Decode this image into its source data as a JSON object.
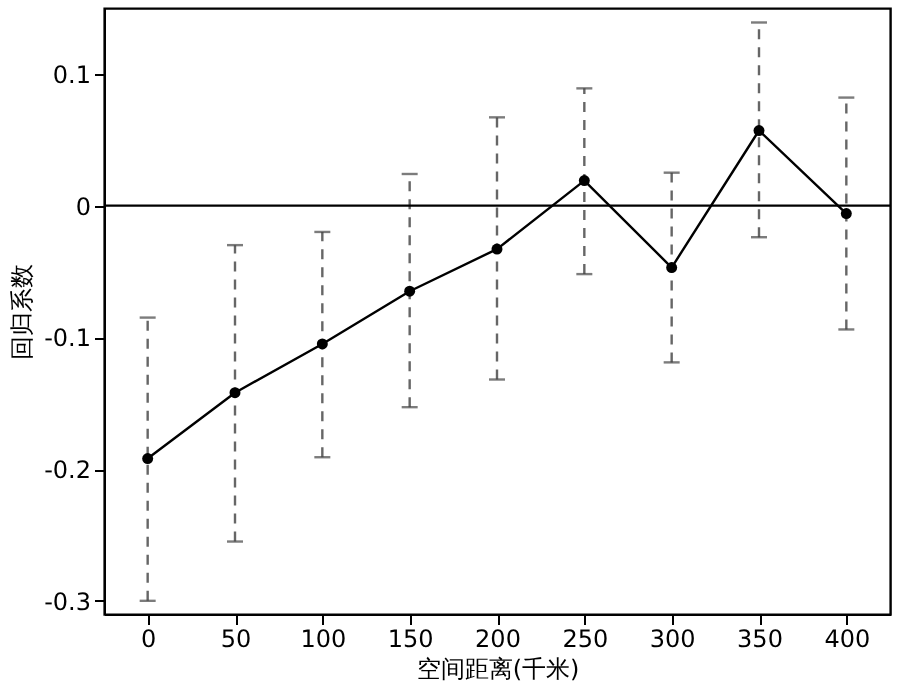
{
  "chart_data": {
    "type": "line",
    "xlabel": "空间距离(千米)",
    "ylabel": "回归系数",
    "x": [
      0,
      50,
      100,
      150,
      200,
      250,
      300,
      350,
      400
    ],
    "series": [
      {
        "color": "#000000",
        "values": [
          -0.192,
          -0.142,
          -0.105,
          -0.065,
          -0.033,
          0.019,
          -0.047,
          0.057,
          -0.006
        ],
        "errors": [
          [
            -0.3,
            -0.085
          ],
          [
            -0.255,
            -0.03
          ],
          [
            -0.191,
            -0.02
          ],
          [
            -0.153,
            0.024
          ],
          [
            -0.132,
            0.067
          ],
          [
            -0.052,
            0.089
          ],
          [
            -0.119,
            0.025
          ],
          [
            -0.024,
            0.139
          ],
          [
            -0.094,
            0.082
          ]
        ]
      }
    ],
    "xlim": [
      -25,
      425
    ],
    "xticks": [
      0,
      50,
      100,
      150,
      200,
      250,
      300,
      350,
      400
    ],
    "ylim": [
      -0.31,
      0.15
    ],
    "yticks": [
      -0.3,
      -0.2,
      -0.1,
      0,
      0.1
    ],
    "ref_lines": [
      {
        "axis": "y",
        "value": 0,
        "color": "#000000",
        "line_style": "solid"
      }
    ],
    "marker": "circle",
    "line_style": "solid",
    "grid": false
  }
}
